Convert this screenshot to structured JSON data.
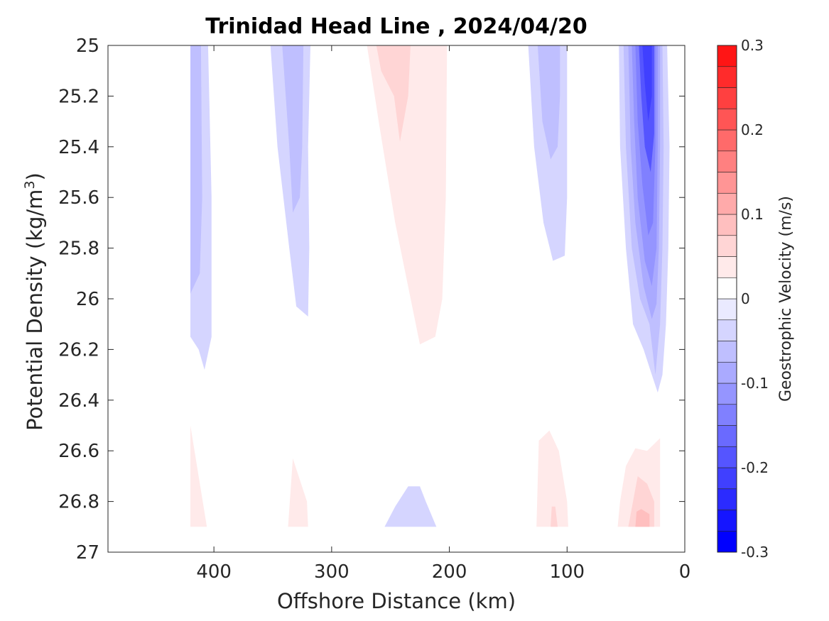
{
  "chart_data": {
    "type": "heatmap",
    "title": "Trinidad Head Line , 2024/04/20",
    "xlabel": "Offshore Distance (km)",
    "ylabel_main": "Potential Density (kg/m",
    "ylabel_sup": "3",
    "ylabel_close": ")",
    "xlim": [
      490,
      0
    ],
    "ylim": [
      25,
      27
    ],
    "x_reversed": true,
    "y_reversed": true,
    "grid": false,
    "x_ticks": [
      {
        "value": 400,
        "label": "400"
      },
      {
        "value": 300,
        "label": "300"
      },
      {
        "value": 200,
        "label": "200"
      },
      {
        "value": 100,
        "label": "100"
      },
      {
        "value": 0,
        "label": "0"
      }
    ],
    "y_ticks": [
      {
        "value": 25,
        "label": "25"
      },
      {
        "value": 25.2,
        "label": "25.2"
      },
      {
        "value": 25.4,
        "label": "25.4"
      },
      {
        "value": 25.6,
        "label": "25.6"
      },
      {
        "value": 25.8,
        "label": "25.8"
      },
      {
        "value": 26,
        "label": "26"
      },
      {
        "value": 26.2,
        "label": "26.2"
      },
      {
        "value": 26.4,
        "label": "26.4"
      },
      {
        "value": 26.6,
        "label": "26.6"
      },
      {
        "value": 26.8,
        "label": "26.8"
      },
      {
        "value": 27,
        "label": "27"
      }
    ],
    "colorbar": {
      "label": "Geostrophic Velocity (m/s)",
      "range": [
        -0.3,
        0.3
      ],
      "ticks": [
        {
          "value": 0.3,
          "label": "0.3"
        },
        {
          "value": 0.2,
          "label": "0.2"
        },
        {
          "value": 0.1,
          "label": "0.1"
        },
        {
          "value": 0,
          "label": "0"
        },
        {
          "value": -0.1,
          "label": "-0.1"
        },
        {
          "value": -0.2,
          "label": "-0.2"
        },
        {
          "value": -0.3,
          "label": "-0.3"
        }
      ],
      "levels": [
        {
          "from": -0.3,
          "to": -0.275,
          "color": "#0000ff"
        },
        {
          "from": -0.275,
          "to": -0.25,
          "color": "#1515ff"
        },
        {
          "from": -0.25,
          "to": -0.225,
          "color": "#2b2bff"
        },
        {
          "from": -0.225,
          "to": -0.2,
          "color": "#4040ff"
        },
        {
          "from": -0.2,
          "to": -0.175,
          "color": "#5555ff"
        },
        {
          "from": -0.175,
          "to": -0.15,
          "color": "#6a6aff"
        },
        {
          "from": -0.15,
          "to": -0.125,
          "color": "#8080ff"
        },
        {
          "from": -0.125,
          "to": -0.1,
          "color": "#9595ff"
        },
        {
          "from": -0.1,
          "to": -0.075,
          "color": "#aaaaff"
        },
        {
          "from": -0.075,
          "to": -0.05,
          "color": "#bfbfff"
        },
        {
          "from": -0.05,
          "to": -0.025,
          "color": "#d5d5ff"
        },
        {
          "from": -0.025,
          "to": 0,
          "color": "#eaeaff"
        },
        {
          "from": 0,
          "to": 0.025,
          "color": "#ffffff"
        },
        {
          "from": 0.025,
          "to": 0.05,
          "color": "#ffeaea"
        },
        {
          "from": 0.05,
          "to": 0.075,
          "color": "#ffd5d5"
        },
        {
          "from": 0.075,
          "to": 0.1,
          "color": "#ffbfbf"
        },
        {
          "from": 0.1,
          "to": 0.125,
          "color": "#ffaaaa"
        },
        {
          "from": 0.125,
          "to": 0.15,
          "color": "#ff9595"
        },
        {
          "from": 0.15,
          "to": 0.175,
          "color": "#ff8080"
        },
        {
          "from": 0.175,
          "to": 0.2,
          "color": "#ff6a6a"
        },
        {
          "from": 0.2,
          "to": 0.225,
          "color": "#ff5555"
        },
        {
          "from": 0.225,
          "to": 0.25,
          "color": "#ff4040"
        },
        {
          "from": 0.25,
          "to": 0.275,
          "color": "#ff2b2b"
        },
        {
          "from": 0.275,
          "to": 0.3,
          "color": "#ff1515"
        }
      ]
    },
    "regions": [
      {
        "velocity": -0.03,
        "points": [
          [
            420,
            25
          ],
          [
            405,
            25
          ],
          [
            402,
            25.6
          ],
          [
            402,
            26.15
          ],
          [
            408,
            26.28
          ],
          [
            413,
            26.2
          ],
          [
            420,
            26.15
          ]
        ]
      },
      {
        "velocity": -0.06,
        "points": [
          [
            420,
            25
          ],
          [
            411,
            25
          ],
          [
            410,
            25.6
          ],
          [
            412,
            25.9
          ],
          [
            420,
            25.98
          ]
        ]
      },
      {
        "velocity": -0.03,
        "points": [
          [
            352,
            25
          ],
          [
            318,
            25
          ],
          [
            320,
            25.4
          ],
          [
            319,
            25.8
          ],
          [
            320,
            26.07
          ],
          [
            330,
            26.03
          ],
          [
            336,
            25.8
          ],
          [
            346,
            25.4
          ]
        ]
      },
      {
        "velocity": -0.06,
        "points": [
          [
            342,
            25
          ],
          [
            324,
            25
          ],
          [
            325,
            25.4
          ],
          [
            327,
            25.6
          ],
          [
            333,
            25.66
          ],
          [
            336,
            25.4
          ]
        ]
      },
      {
        "velocity": 0.03,
        "points": [
          [
            270,
            25
          ],
          [
            202,
            25
          ],
          [
            203,
            25.6
          ],
          [
            206,
            26.0
          ],
          [
            212,
            26.15
          ],
          [
            225,
            26.18
          ],
          [
            232,
            26.02
          ],
          [
            246,
            25.7
          ],
          [
            260,
            25.3
          ]
        ]
      },
      {
        "velocity": 0.06,
        "points": [
          [
            262,
            25
          ],
          [
            233,
            25
          ],
          [
            235,
            25.2
          ],
          [
            242,
            25.38
          ],
          [
            247,
            25.2
          ],
          [
            258,
            25.1
          ]
        ]
      },
      {
        "velocity": -0.03,
        "points": [
          [
            133,
            25
          ],
          [
            100,
            25
          ],
          [
            100,
            25.6
          ],
          [
            102,
            25.83
          ],
          [
            112,
            25.85
          ],
          [
            120,
            25.7
          ],
          [
            128,
            25.4
          ]
        ]
      },
      {
        "velocity": -0.06,
        "points": [
          [
            125,
            25
          ],
          [
            106,
            25
          ],
          [
            106,
            25.2
          ],
          [
            108,
            25.4
          ],
          [
            114,
            25.45
          ],
          [
            121,
            25.3
          ]
        ]
      },
      {
        "velocity": -0.03,
        "points": [
          [
            56,
            25
          ],
          [
            15,
            25
          ],
          [
            13,
            25.4
          ],
          [
            14,
            25.8
          ],
          [
            16,
            26.1
          ],
          [
            19,
            26.3
          ],
          [
            23,
            26.37
          ],
          [
            28,
            26.3
          ],
          [
            35,
            26.2
          ],
          [
            44,
            26.1
          ],
          [
            50,
            25.8
          ],
          [
            55,
            25.4
          ]
        ]
      },
      {
        "velocity": -0.06,
        "points": [
          [
            52,
            25
          ],
          [
            19,
            25
          ],
          [
            18,
            25.4
          ],
          [
            19,
            25.8
          ],
          [
            21,
            26.1
          ],
          [
            25,
            26.3
          ],
          [
            30,
            26.1
          ],
          [
            38,
            26.0
          ],
          [
            45,
            25.8
          ],
          [
            50,
            25.4
          ]
        ]
      },
      {
        "velocity": -0.09,
        "points": [
          [
            48,
            25
          ],
          [
            21,
            25
          ],
          [
            21,
            25.4
          ],
          [
            22,
            25.8
          ],
          [
            24,
            26.02
          ],
          [
            28,
            26.08
          ],
          [
            35,
            25.95
          ],
          [
            42,
            25.7
          ],
          [
            46,
            25.4
          ]
        ]
      },
      {
        "velocity": -0.12,
        "points": [
          [
            45,
            25
          ],
          [
            23,
            25
          ],
          [
            23,
            25.4
          ],
          [
            24,
            25.8
          ],
          [
            28,
            25.95
          ],
          [
            34,
            25.85
          ],
          [
            40,
            25.6
          ],
          [
            43,
            25.3
          ]
        ]
      },
      {
        "velocity": -0.15,
        "points": [
          [
            42,
            25
          ],
          [
            25,
            25
          ],
          [
            25,
            25.4
          ],
          [
            27,
            25.7
          ],
          [
            31,
            25.75
          ],
          [
            36,
            25.55
          ],
          [
            40,
            25.3
          ]
        ]
      },
      {
        "velocity": -0.18,
        "points": [
          [
            39,
            25
          ],
          [
            26,
            25
          ],
          [
            26,
            25.35
          ],
          [
            29,
            25.5
          ],
          [
            34,
            25.4
          ],
          [
            37,
            25.2
          ]
        ]
      },
      {
        "velocity": -0.21,
        "points": [
          [
            36,
            25
          ],
          [
            28,
            25
          ],
          [
            28,
            25.2
          ],
          [
            31,
            25.3
          ],
          [
            34,
            25.15
          ]
        ]
      },
      {
        "velocity": 0.03,
        "points": [
          [
            420,
            26.5
          ],
          [
            420,
            26.9
          ],
          [
            406,
            26.9
          ],
          [
            413,
            26.7
          ]
        ]
      },
      {
        "velocity": 0.03,
        "points": [
          [
            333,
            26.63
          ],
          [
            337,
            26.9
          ],
          [
            320,
            26.9
          ],
          [
            321,
            26.8
          ]
        ]
      },
      {
        "velocity": -0.03,
        "points": [
          [
            255,
            26.9
          ],
          [
            246,
            26.82
          ],
          [
            235,
            26.74
          ],
          [
            225,
            26.74
          ],
          [
            220,
            26.8
          ],
          [
            211,
            26.9
          ]
        ]
      },
      {
        "velocity": 0.03,
        "points": [
          [
            126,
            26.9
          ],
          [
            124,
            26.56
          ],
          [
            115,
            26.52
          ],
          [
            107,
            26.6
          ],
          [
            100,
            26.8
          ],
          [
            99,
            26.9
          ]
        ]
      },
      {
        "velocity": 0.06,
        "points": [
          [
            114,
            26.9
          ],
          [
            113,
            26.82
          ],
          [
            110,
            26.82
          ],
          [
            108,
            26.9
          ]
        ]
      },
      {
        "velocity": 0.03,
        "points": [
          [
            57,
            26.9
          ],
          [
            55,
            26.8
          ],
          [
            50,
            26.66
          ],
          [
            42,
            26.59
          ],
          [
            32,
            26.6
          ],
          [
            21,
            26.55
          ],
          [
            21,
            26.9
          ]
        ]
      },
      {
        "velocity": 0.06,
        "points": [
          [
            48,
            26.9
          ],
          [
            44,
            26.8
          ],
          [
            40,
            26.7
          ],
          [
            32,
            26.73
          ],
          [
            26,
            26.8
          ],
          [
            26,
            26.9
          ]
        ]
      },
      {
        "velocity": 0.09,
        "points": [
          [
            42,
            26.9
          ],
          [
            41,
            26.84
          ],
          [
            37,
            26.83
          ],
          [
            30,
            26.85
          ],
          [
            30,
            26.9
          ]
        ]
      }
    ]
  }
}
